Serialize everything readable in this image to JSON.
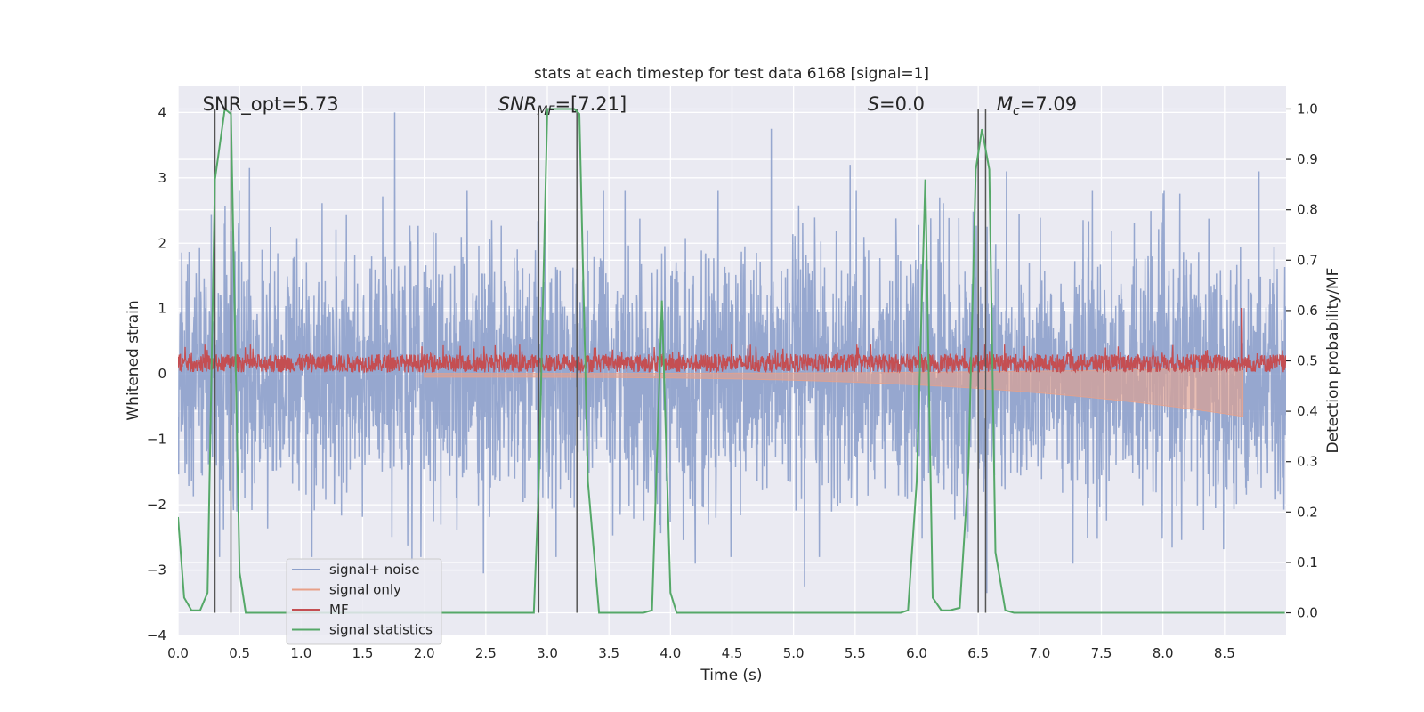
{
  "chart_data": {
    "type": "line",
    "title": "stats at each timestep for test data 6168 [signal=1]",
    "xlabel": "Time (s)",
    "ylabel": "Whitened strain",
    "y2label": "Detection probability/MF",
    "xlim": [
      0.0,
      9.0
    ],
    "ylim": [
      -4.0,
      4.4
    ],
    "y2lim": [
      -0.045,
      1.045
    ],
    "xticks": [
      0.0,
      0.5,
      1.0,
      1.5,
      2.0,
      2.5,
      3.0,
      3.5,
      4.0,
      4.5,
      5.0,
      5.5,
      6.0,
      6.5,
      7.0,
      7.5,
      8.0,
      8.5
    ],
    "xtick_labels": [
      "0.0",
      "0.5",
      "1.0",
      "1.5",
      "2.0",
      "2.5",
      "3.0",
      "3.5",
      "4.0",
      "4.5",
      "5.0",
      "5.5",
      "6.0",
      "6.5",
      "7.0",
      "7.5",
      "8.0",
      "8.5"
    ],
    "yticks": [
      -4,
      -3,
      -2,
      -1,
      0,
      1,
      2,
      3,
      4
    ],
    "ytick_labels": [
      "−4",
      "−3",
      "−2",
      "−1",
      "0",
      "1",
      "2",
      "3",
      "4"
    ],
    "y2ticks": [
      0.0,
      0.1,
      0.2,
      0.3,
      0.4,
      0.5,
      0.6,
      0.7,
      0.8,
      0.9,
      1.0
    ],
    "y2tick_labels": [
      "0.0",
      "0.1",
      "0.2",
      "0.3",
      "0.4",
      "0.5",
      "0.6",
      "0.7",
      "0.8",
      "0.9",
      "1.0"
    ],
    "grid": true,
    "legend_position": "lower-left",
    "annotations": [
      {
        "parts": [
          {
            "text": "SNR_opt=5.73",
            "italic": false
          }
        ],
        "x": 0.2
      },
      {
        "parts": [
          {
            "text": "SNR",
            "italic": true
          },
          {
            "text": "MF",
            "italic": true,
            "sub": true
          },
          {
            "text": "=[7.21]",
            "italic": false
          }
        ],
        "x": 2.6
      },
      {
        "parts": [
          {
            "text": "S",
            "italic": true
          },
          {
            "text": "=0.0",
            "italic": false
          }
        ],
        "x": 5.6
      },
      {
        "parts": [
          {
            "text": "M",
            "italic": true
          },
          {
            "text": "c",
            "italic": true,
            "sub": true
          },
          {
            "text": "=7.09",
            "italic": false
          }
        ],
        "x": 6.65
      }
    ],
    "vertical_lines_x": [
      0.3,
      0.43,
      2.93,
      3.24,
      6.5,
      6.56
    ],
    "series": [
      {
        "name": "signal+ noise",
        "color": "#8da0cb",
        "axis": "left",
        "kind": "noise",
        "n_points": 3600,
        "typical_range": [
          -2.8,
          2.8
        ],
        "peak_values": [
          {
            "x": 1.76,
            "y": 4.0
          },
          {
            "x": 4.82,
            "y": 3.75
          },
          {
            "x": 0.58,
            "y": 3.15
          },
          {
            "x": 5.46,
            "y": 3.2
          },
          {
            "x": 6.73,
            "y": 3.1
          },
          {
            "x": 8.78,
            "y": 3.1
          },
          {
            "x": 2.48,
            "y": -3.05
          },
          {
            "x": 5.09,
            "y": -3.25
          },
          {
            "x": 6.57,
            "y": -3.35
          },
          {
            "x": 1.9,
            "y": -2.85
          },
          {
            "x": 4.2,
            "y": -2.9
          },
          {
            "x": 7.27,
            "y": -2.9
          }
        ]
      },
      {
        "name": "signal only",
        "color": "#e8a088",
        "axis": "left",
        "kind": "chirp",
        "start_x": 2.0,
        "end_x": 8.65,
        "max_amplitude": 0.65
      },
      {
        "name": "MF",
        "color": "#c44e52",
        "axis": "left",
        "kind": "mf",
        "baseline": 0.15,
        "range": [
          0.0,
          0.45
        ],
        "peak": {
          "x": 8.64,
          "y": 1.0
        }
      },
      {
        "name": "signal statistics",
        "color": "#55a868",
        "axis": "right",
        "kind": "line",
        "x": [
          0.0,
          0.05,
          0.11,
          0.18,
          0.24,
          0.3,
          0.38,
          0.43,
          0.5,
          0.55,
          0.62,
          2.89,
          2.93,
          3.0,
          3.22,
          3.26,
          3.33,
          3.42,
          3.78,
          3.85,
          3.93,
          4.0,
          4.05,
          4.13,
          5.87,
          5.93,
          6.0,
          6.07,
          6.13,
          6.2,
          6.27,
          6.35,
          6.42,
          6.48,
          6.53,
          6.59,
          6.64,
          6.72,
          6.79,
          8.99
        ],
        "y": [
          0.19,
          0.03,
          0.005,
          0.005,
          0.04,
          0.86,
          1.0,
          0.99,
          0.08,
          0.0,
          0.0,
          0.0,
          0.25,
          1.0,
          1.0,
          0.99,
          0.26,
          0.0,
          0.0,
          0.005,
          0.62,
          0.04,
          0.0,
          0.0,
          0.0,
          0.005,
          0.26,
          0.86,
          0.03,
          0.005,
          0.005,
          0.01,
          0.28,
          0.88,
          0.96,
          0.88,
          0.12,
          0.005,
          0.0,
          0.0
        ]
      }
    ]
  }
}
